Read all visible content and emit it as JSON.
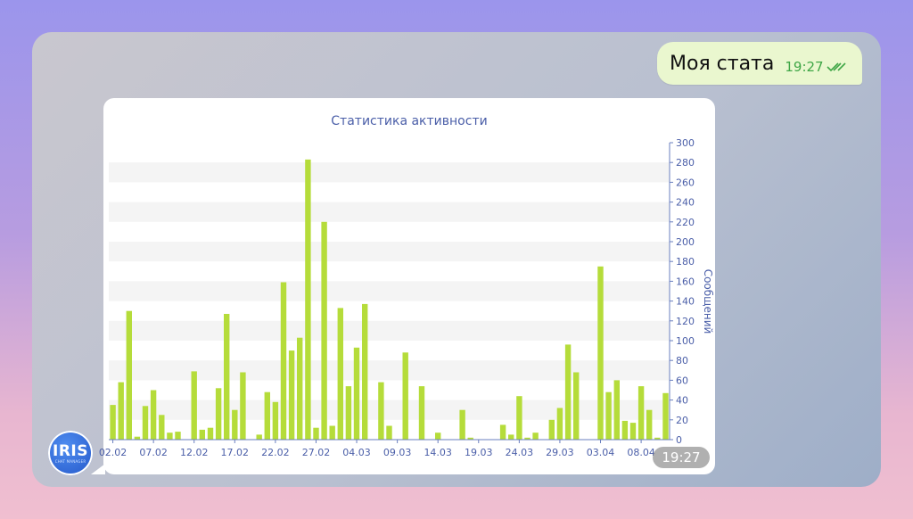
{
  "message": {
    "text": "Моя стата",
    "time": "19:27"
  },
  "image_time": "19:27",
  "avatar": {
    "logo_text": "IRIS",
    "sub_text": "CHAT MANAGER"
  },
  "colors": {
    "bar": "#b5dc3a",
    "axis_text": "#4a5ea8",
    "band": "#f4f4f4"
  },
  "chart_data": {
    "type": "bar",
    "title": "Статистика активности",
    "ylabel": "Сообщений",
    "ylim": [
      0,
      300
    ],
    "y_ticks": [
      0,
      20,
      40,
      60,
      80,
      100,
      120,
      140,
      160,
      180,
      200,
      220,
      240,
      260,
      280,
      300
    ],
    "x_tick_labels": [
      "02.02",
      "07.02",
      "12.02",
      "17.02",
      "22.02",
      "27.02",
      "04.03",
      "09.03",
      "14.03",
      "19.03",
      "24.03",
      "29.03",
      "03.04",
      "08.04"
    ],
    "values": [
      35,
      58,
      130,
      3,
      34,
      50,
      25,
      7,
      8,
      0,
      69,
      10,
      12,
      52,
      127,
      30,
      68,
      0,
      5,
      48,
      38,
      159,
      90,
      103,
      283,
      12,
      220,
      14,
      133,
      54,
      93,
      137,
      0,
      58,
      14,
      0,
      88,
      0,
      54,
      0,
      7,
      0,
      0,
      30,
      2,
      0,
      0,
      0,
      15,
      5,
      44,
      2,
      7,
      0,
      20,
      32,
      96,
      68,
      0,
      0,
      175,
      48,
      60,
      19,
      17,
      54,
      30,
      2,
      47
    ]
  }
}
